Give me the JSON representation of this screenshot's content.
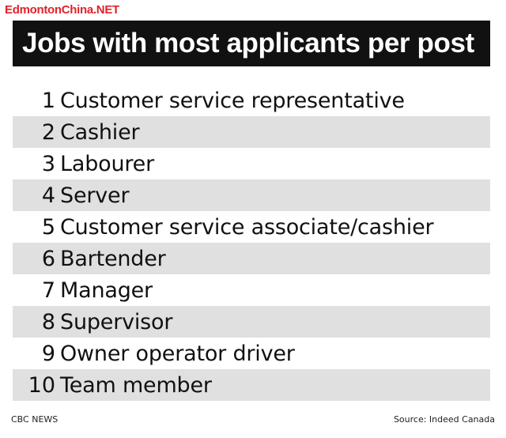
{
  "watermark": "EdmontonChina.NET",
  "title": "Jobs with most applicants per post",
  "rows": [
    {
      "rank": "1",
      "job": "Customer service representative"
    },
    {
      "rank": "2",
      "job": "Cashier"
    },
    {
      "rank": "3",
      "job": "Labourer"
    },
    {
      "rank": "4",
      "job": "Server"
    },
    {
      "rank": "5",
      "job": "Customer service associate/cashier"
    },
    {
      "rank": "6",
      "job": "Bartender"
    },
    {
      "rank": "7",
      "job": "Manager"
    },
    {
      "rank": "8",
      "job": "Supervisor"
    },
    {
      "rank": "9",
      "job": "Owner operator driver"
    },
    {
      "rank": "10",
      "job": "Team member"
    }
  ],
  "footer": {
    "credit": "CBC NEWS",
    "source": "Source: Indeed Canada"
  },
  "colors": {
    "title_bg": "#111111",
    "stripe": "#e0e0e0",
    "watermark": "#e0222a"
  }
}
